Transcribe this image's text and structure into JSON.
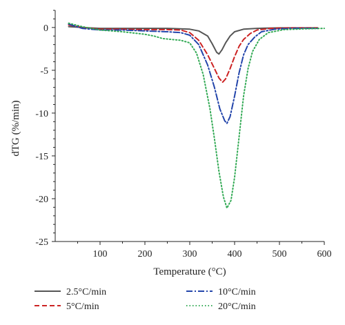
{
  "chart_data": {
    "type": "line",
    "xlabel": "Temperature (°C)",
    "ylabel": "dTG (%/min)",
    "xlim": [
      0,
      600
    ],
    "ylim": [
      -25,
      2
    ],
    "x_ticks": [
      "100",
      "200",
      "300",
      "400",
      "500",
      "600"
    ],
    "y_ticks": [
      "0",
      "-5",
      "-10",
      "-15",
      "-20",
      "-25"
    ],
    "grid": false,
    "legend_placement": "bottom",
    "series": [
      {
        "name": "2.5°C/min",
        "color": "#555555",
        "dash": "solid",
        "points": [
          [
            30,
            0.1
          ],
          [
            60,
            0.0
          ],
          [
            100,
            -0.1
          ],
          [
            150,
            -0.1
          ],
          [
            200,
            -0.1
          ],
          [
            250,
            -0.1
          ],
          [
            300,
            -0.2
          ],
          [
            320,
            -0.4
          ],
          [
            340,
            -1.0
          ],
          [
            350,
            -1.9
          ],
          [
            360,
            -2.9
          ],
          [
            365,
            -3.1
          ],
          [
            372,
            -2.6
          ],
          [
            380,
            -1.8
          ],
          [
            390,
            -1.0
          ],
          [
            400,
            -0.5
          ],
          [
            420,
            -0.2
          ],
          [
            450,
            -0.1
          ],
          [
            500,
            -0.05
          ],
          [
            550,
            -0.05
          ],
          [
            585,
            -0.05
          ]
        ]
      },
      {
        "name": "5°C/min",
        "color": "#cc2222",
        "dash": "dashed",
        "points": [
          [
            30,
            0.3
          ],
          [
            60,
            0.0
          ],
          [
            100,
            -0.2
          ],
          [
            150,
            -0.2
          ],
          [
            200,
            -0.25
          ],
          [
            250,
            -0.25
          ],
          [
            280,
            -0.3
          ],
          [
            300,
            -0.6
          ],
          [
            320,
            -1.5
          ],
          [
            340,
            -3.2
          ],
          [
            355,
            -4.8
          ],
          [
            365,
            -5.9
          ],
          [
            373,
            -6.4
          ],
          [
            380,
            -6.0
          ],
          [
            390,
            -4.8
          ],
          [
            400,
            -3.4
          ],
          [
            410,
            -2.2
          ],
          [
            420,
            -1.4
          ],
          [
            435,
            -0.7
          ],
          [
            450,
            -0.3
          ],
          [
            480,
            -0.1
          ],
          [
            520,
            -0.05
          ],
          [
            585,
            -0.05
          ]
        ]
      },
      {
        "name": "10°C/min",
        "color": "#2244aa",
        "dash": "dashdot",
        "points": [
          [
            30,
            0.4
          ],
          [
            60,
            -0.1
          ],
          [
            100,
            -0.3
          ],
          [
            150,
            -0.3
          ],
          [
            200,
            -0.4
          ],
          [
            250,
            -0.5
          ],
          [
            280,
            -0.6
          ],
          [
            300,
            -0.9
          ],
          [
            320,
            -2.0
          ],
          [
            340,
            -4.4
          ],
          [
            355,
            -7.0
          ],
          [
            367,
            -9.5
          ],
          [
            378,
            -10.9
          ],
          [
            383,
            -11.2
          ],
          [
            390,
            -10.4
          ],
          [
            400,
            -8.0
          ],
          [
            410,
            -5.3
          ],
          [
            420,
            -3.2
          ],
          [
            430,
            -2.0
          ],
          [
            445,
            -1.1
          ],
          [
            460,
            -0.5
          ],
          [
            490,
            -0.2
          ],
          [
            530,
            -0.1
          ],
          [
            585,
            -0.1
          ]
        ]
      },
      {
        "name": "20°C/min",
        "color": "#33aa55",
        "dash": "dotted",
        "points": [
          [
            30,
            0.5
          ],
          [
            60,
            0.1
          ],
          [
            100,
            -0.3
          ],
          [
            150,
            -0.5
          ],
          [
            200,
            -0.8
          ],
          [
            220,
            -1.0
          ],
          [
            240,
            -1.3
          ],
          [
            260,
            -1.4
          ],
          [
            280,
            -1.5
          ],
          [
            300,
            -1.8
          ],
          [
            315,
            -3.0
          ],
          [
            330,
            -5.5
          ],
          [
            345,
            -9.5
          ],
          [
            355,
            -13.0
          ],
          [
            365,
            -16.8
          ],
          [
            375,
            -19.8
          ],
          [
            383,
            -21.1
          ],
          [
            392,
            -20.2
          ],
          [
            400,
            -17.5
          ],
          [
            410,
            -12.8
          ],
          [
            420,
            -8.0
          ],
          [
            430,
            -4.8
          ],
          [
            440,
            -2.8
          ],
          [
            455,
            -1.4
          ],
          [
            475,
            -0.6
          ],
          [
            510,
            -0.25
          ],
          [
            560,
            -0.15
          ],
          [
            600,
            -0.1
          ]
        ]
      }
    ]
  }
}
